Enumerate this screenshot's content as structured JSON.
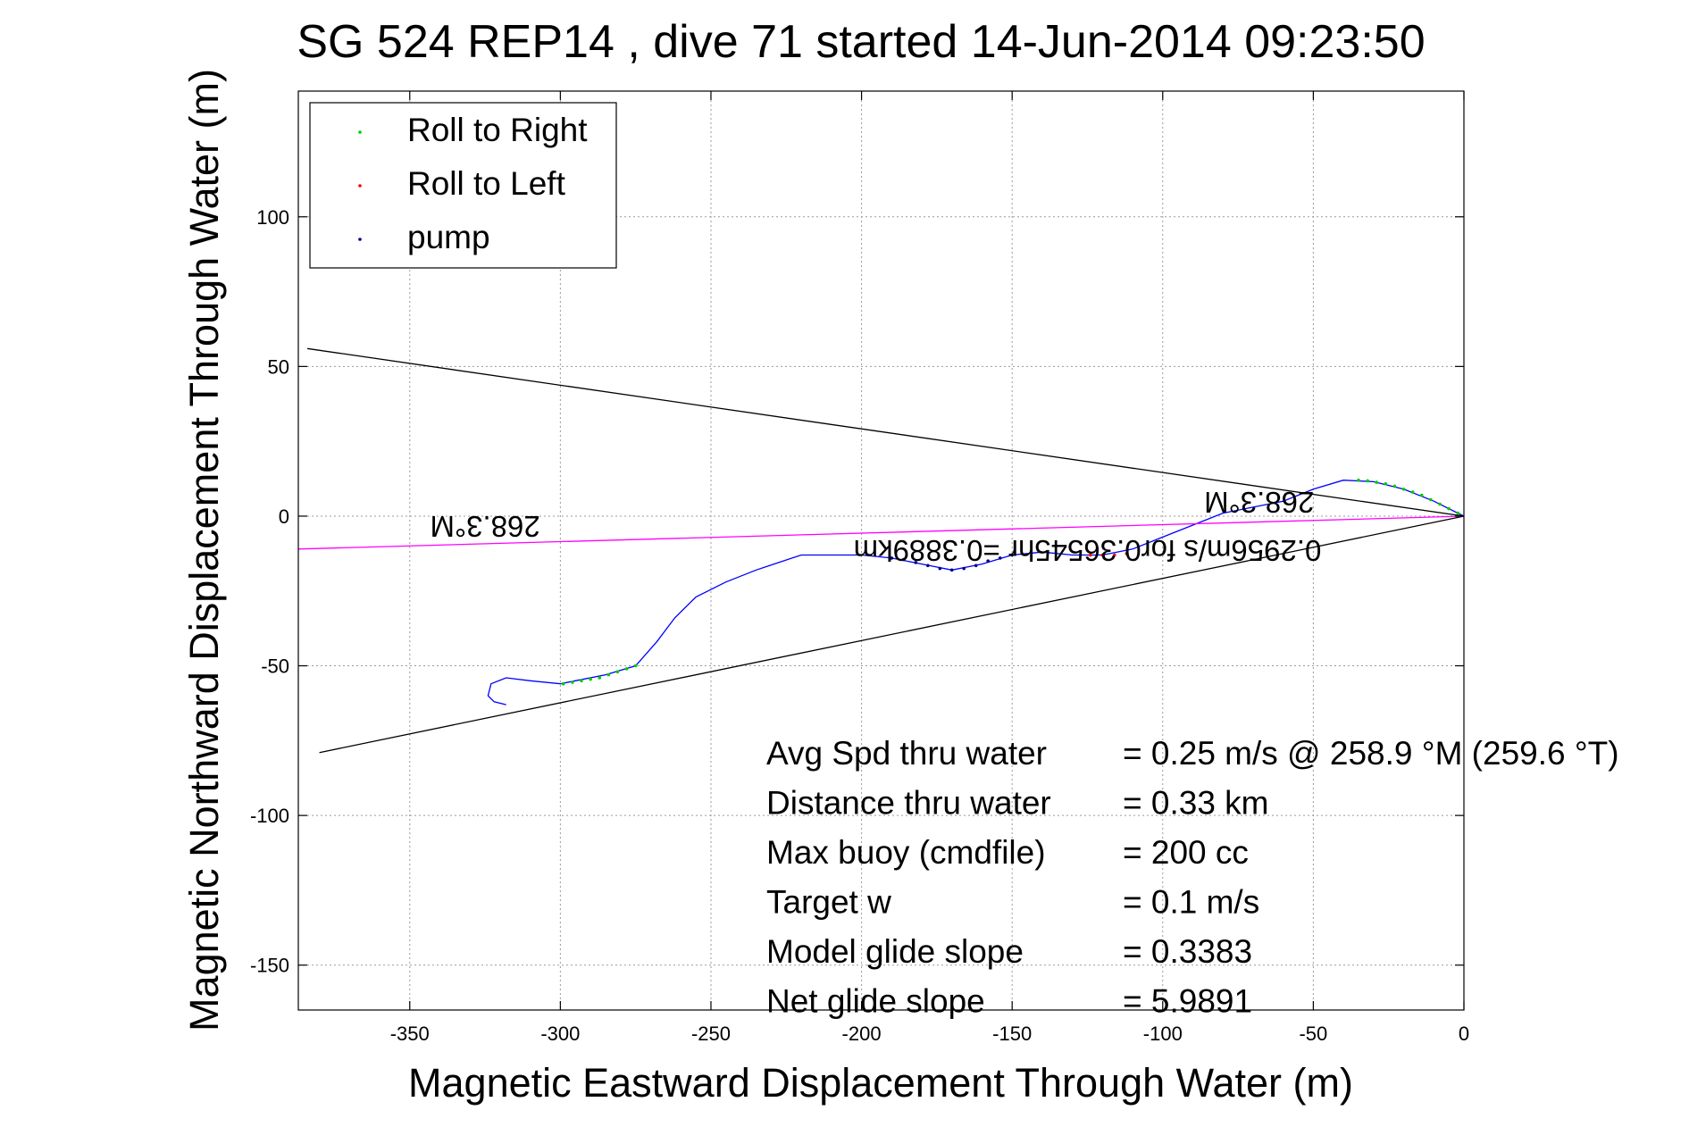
{
  "chart_data": {
    "type": "line",
    "title": "SG 524   REP14  , dive 71 started 14-Jun-2014 09:23:50",
    "xlabel": "Magnetic Eastward Displacement Through Water (m)",
    "ylabel": "Magnetic Northward Displacement Through Water (m)",
    "xlim": [
      -387,
      0
    ],
    "ylim": [
      -165,
      142
    ],
    "xticks": [
      -350,
      -300,
      -250,
      -200,
      -150,
      -100,
      -50,
      0
    ],
    "yticks": [
      -150,
      -100,
      -50,
      0,
      50,
      100
    ],
    "grid": true,
    "legend_position": "top-left",
    "legend": [
      {
        "label": "Roll to Right",
        "color": "#00cc00"
      },
      {
        "label": "Roll to Left",
        "color": "#ff0000"
      },
      {
        "label": "pump",
        "color": "#000080"
      }
    ],
    "series": [
      {
        "color": "#0000ff",
        "x": [
          0,
          -10,
          -20,
          -30,
          -40,
          -50,
          -60,
          -70,
          -80,
          -90,
          -100,
          -110,
          -120,
          -130,
          -140,
          -150,
          -160,
          -170,
          -180,
          -190,
          -200,
          -210,
          -220,
          -235,
          -245,
          -255,
          -262,
          -268,
          -275,
          -285,
          -295,
          -300,
          -310,
          -318,
          -323,
          -324,
          -322,
          -318
        ],
        "y": [
          0,
          5,
          9,
          11.5,
          12,
          9,
          5,
          3,
          1,
          -3,
          -7,
          -11,
          -13,
          -13,
          -12,
          -13,
          -16,
          -18,
          -16,
          -14,
          -13,
          -13,
          -13,
          -18,
          -22,
          -27,
          -34,
          -42,
          -50,
          -53,
          -55,
          -56,
          -55,
          -54,
          -56,
          -60,
          -62,
          -63
        ]
      },
      {
        "color": "#000000",
        "name": "",
        "x": [
          0,
          -384
        ],
        "y": [
          0,
          56
        ]
      },
      {
        "color": "#000000",
        "x": [
          0,
          -380
        ],
        "y": [
          0,
          -79
        ]
      },
      {
        "color": "#ff00ff",
        "x": [
          0,
          -387
        ],
        "y": [
          0,
          -11
        ]
      }
    ],
    "markers": {
      "roll_right": {
        "color": "#00cc00",
        "x": [
          -2,
          -5,
          -8,
          -11,
          -14,
          -17,
          -20,
          -23,
          -26,
          -29,
          -32,
          -35,
          -275,
          -278,
          -281,
          -284,
          -287,
          -290,
          -293,
          -296,
          -299
        ],
        "y": [
          1,
          2.5,
          4,
          5.5,
          7,
          8,
          9,
          10,
          10.8,
          11.3,
          11.8,
          12,
          -50,
          -51,
          -52,
          -53,
          -54,
          -54.5,
          -55,
          -55.5,
          -56
        ]
      },
      "roll_left": {
        "color": "#ff0000",
        "x": [
          -112,
          -116,
          -120,
          -124
        ],
        "y": [
          -12.5,
          -13,
          -13,
          -13
        ]
      },
      "pump": {
        "color": "#000080",
        "x": [
          -150,
          -154,
          -158,
          -162,
          -166,
          -170,
          -174,
          -178,
          -182,
          -186,
          -190
        ],
        "y": [
          -13,
          -14,
          -15,
          -16.5,
          -17.5,
          -18,
          -17.5,
          -16.5,
          -15.5,
          -14.5,
          -14
        ]
      }
    },
    "annotations": [
      {
        "text": "268.3°M",
        "x": -325,
        "y": 0,
        "rotation": 180
      },
      {
        "text": "268.3°M",
        "x": -68,
        "y": 8,
        "rotation": 180
      },
      {
        "text": "0.2956m/s for0.36545hr =0.3889km",
        "x": -125,
        "y": -8,
        "rotation": 180
      }
    ],
    "stats": [
      {
        "label": "Avg Spd thru water",
        "value": "=  0.25 m/s @ 258.9 °M (259.6 °T)"
      },
      {
        "label": "Distance thru water",
        "value": "=  0.33 km"
      },
      {
        "label": "Max buoy (cmdfile)",
        "value": "= 200 cc"
      },
      {
        "label": "Target w",
        "value": "= 0.1 m/s"
      },
      {
        "label": "Model glide slope",
        "value": "= 0.3383"
      },
      {
        "label": "Net glide slope",
        "value": "= 5.9891"
      }
    ]
  }
}
